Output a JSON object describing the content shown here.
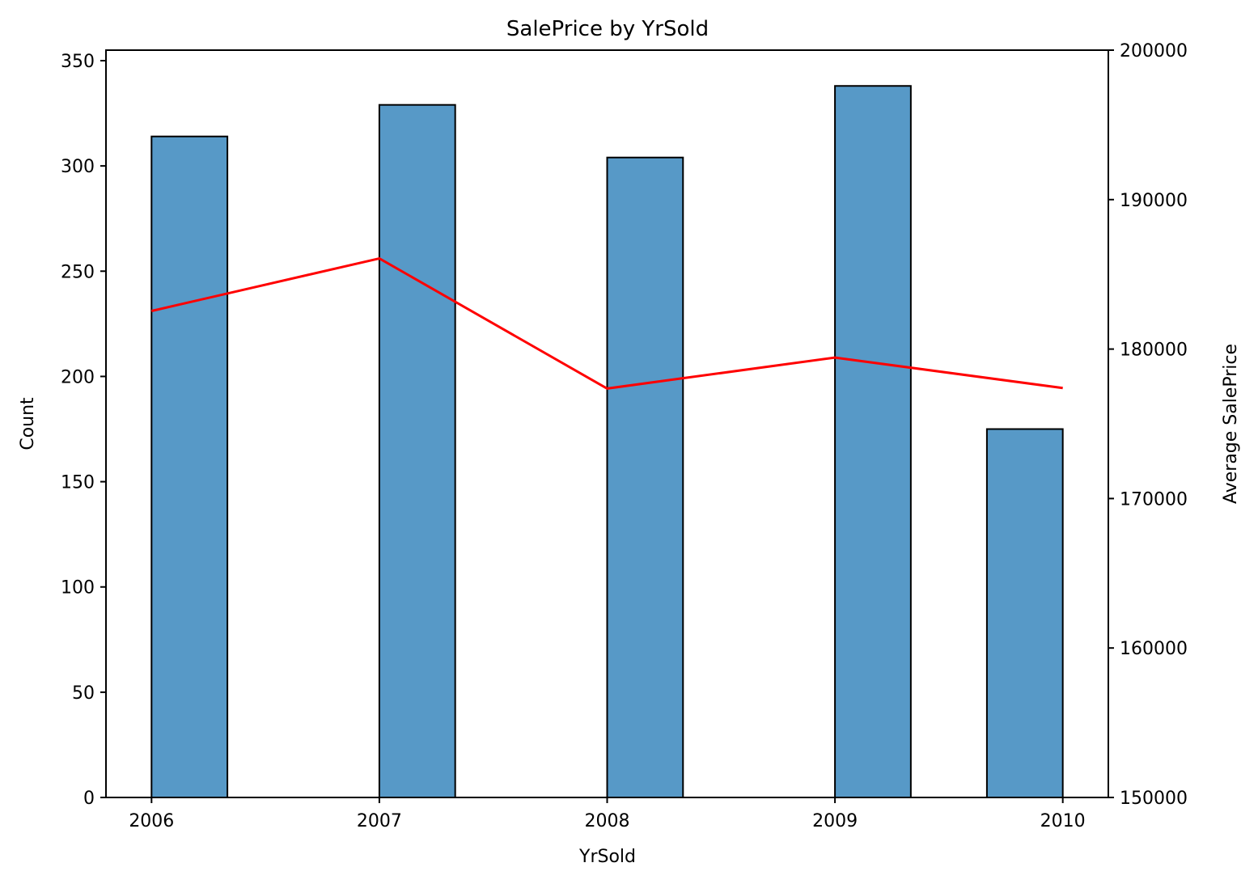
{
  "chart_data": {
    "type": "bar",
    "title": "SalePrice by YrSold",
    "xlabel": "YrSold",
    "ylabel": "Count",
    "y2label": "Average SalePrice",
    "x_ticks": [
      "2006",
      "2007",
      "2008",
      "2009",
      "2010"
    ],
    "y_ticks": [
      "0",
      "50",
      "100",
      "150",
      "200",
      "250",
      "300",
      "350"
    ],
    "y2_ticks": [
      "150000",
      "160000",
      "170000",
      "180000",
      "190000",
      "200000"
    ],
    "xlim": [
      2005.8,
      2010.2
    ],
    "ylim": [
      0,
      355
    ],
    "y2lim": [
      150000,
      200000
    ],
    "bars": [
      {
        "x_start": 2006.0,
        "x_end": 2006.333,
        "count": 314
      },
      {
        "x_start": 2007.0,
        "x_end": 2007.333,
        "count": 329
      },
      {
        "x_start": 2008.0,
        "x_end": 2008.333,
        "count": 304
      },
      {
        "x_start": 2009.0,
        "x_end": 2009.333,
        "count": 338
      },
      {
        "x_start": 2009.667,
        "x_end": 2010.0,
        "count": 175
      }
    ],
    "line": {
      "color": "#ff0000",
      "x": [
        2006,
        2007,
        2008,
        2009,
        2010
      ],
      "y": [
        182549,
        186063,
        177360,
        179432,
        177393
      ]
    },
    "bar_color": "#5799c7",
    "grid": false,
    "legend": "none"
  }
}
